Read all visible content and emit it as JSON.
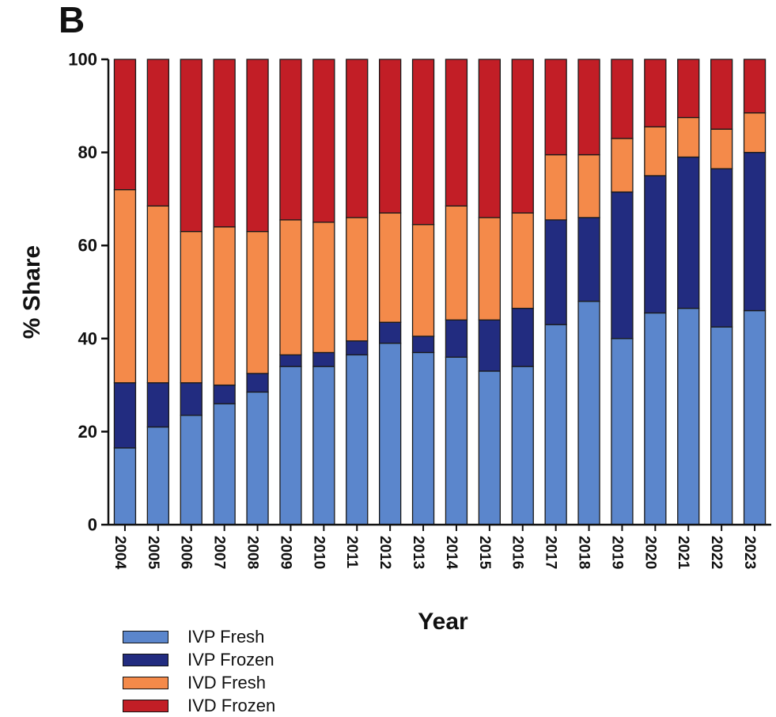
{
  "panel_label": "B",
  "chart_data": {
    "type": "bar",
    "stacked": true,
    "xlabel": "Year",
    "ylabel": "% Share",
    "ylim": [
      0,
      100
    ],
    "yticks": [
      0,
      20,
      40,
      60,
      80,
      100
    ],
    "grid": false,
    "legend_position": "bottom-left",
    "categories": [
      "2004",
      "2005",
      "2006",
      "2007",
      "2008",
      "2009",
      "2010",
      "2011",
      "2012",
      "2013",
      "2014",
      "2015",
      "2016",
      "2017",
      "2018",
      "2019",
      "2020",
      "2021",
      "2022",
      "2023"
    ],
    "series": [
      {
        "name": "IVP Fresh",
        "color": "#5b86cc",
        "values": [
          16.5,
          21,
          23.5,
          26,
          28.5,
          34,
          34,
          36.5,
          39,
          37,
          36,
          33,
          34,
          43,
          48,
          40,
          45.5,
          46.5,
          42.5,
          46
        ]
      },
      {
        "name": "IVP Frozen",
        "color": "#222c80",
        "values": [
          14,
          9.5,
          7,
          4,
          4,
          2.5,
          3,
          3,
          4.5,
          3.5,
          8,
          11,
          12.5,
          22.5,
          18,
          31.5,
          29.5,
          32.5,
          34,
          34
        ]
      },
      {
        "name": "IVD Fresh",
        "color": "#f48a4a",
        "values": [
          41.5,
          38,
          32.5,
          34,
          30.5,
          29,
          28,
          26.5,
          23.5,
          24,
          24.5,
          22,
          20.5,
          14,
          13.5,
          11.5,
          10.5,
          8.5,
          8.5,
          8.5
        ]
      },
      {
        "name": "IVD Frozen",
        "color": "#c21e26",
        "values": [
          28,
          31.5,
          37,
          36,
          37,
          34.5,
          35,
          34,
          33,
          35.5,
          31.5,
          34,
          33,
          20.5,
          20.5,
          17,
          14.5,
          12.5,
          15,
          11.5
        ]
      }
    ]
  }
}
